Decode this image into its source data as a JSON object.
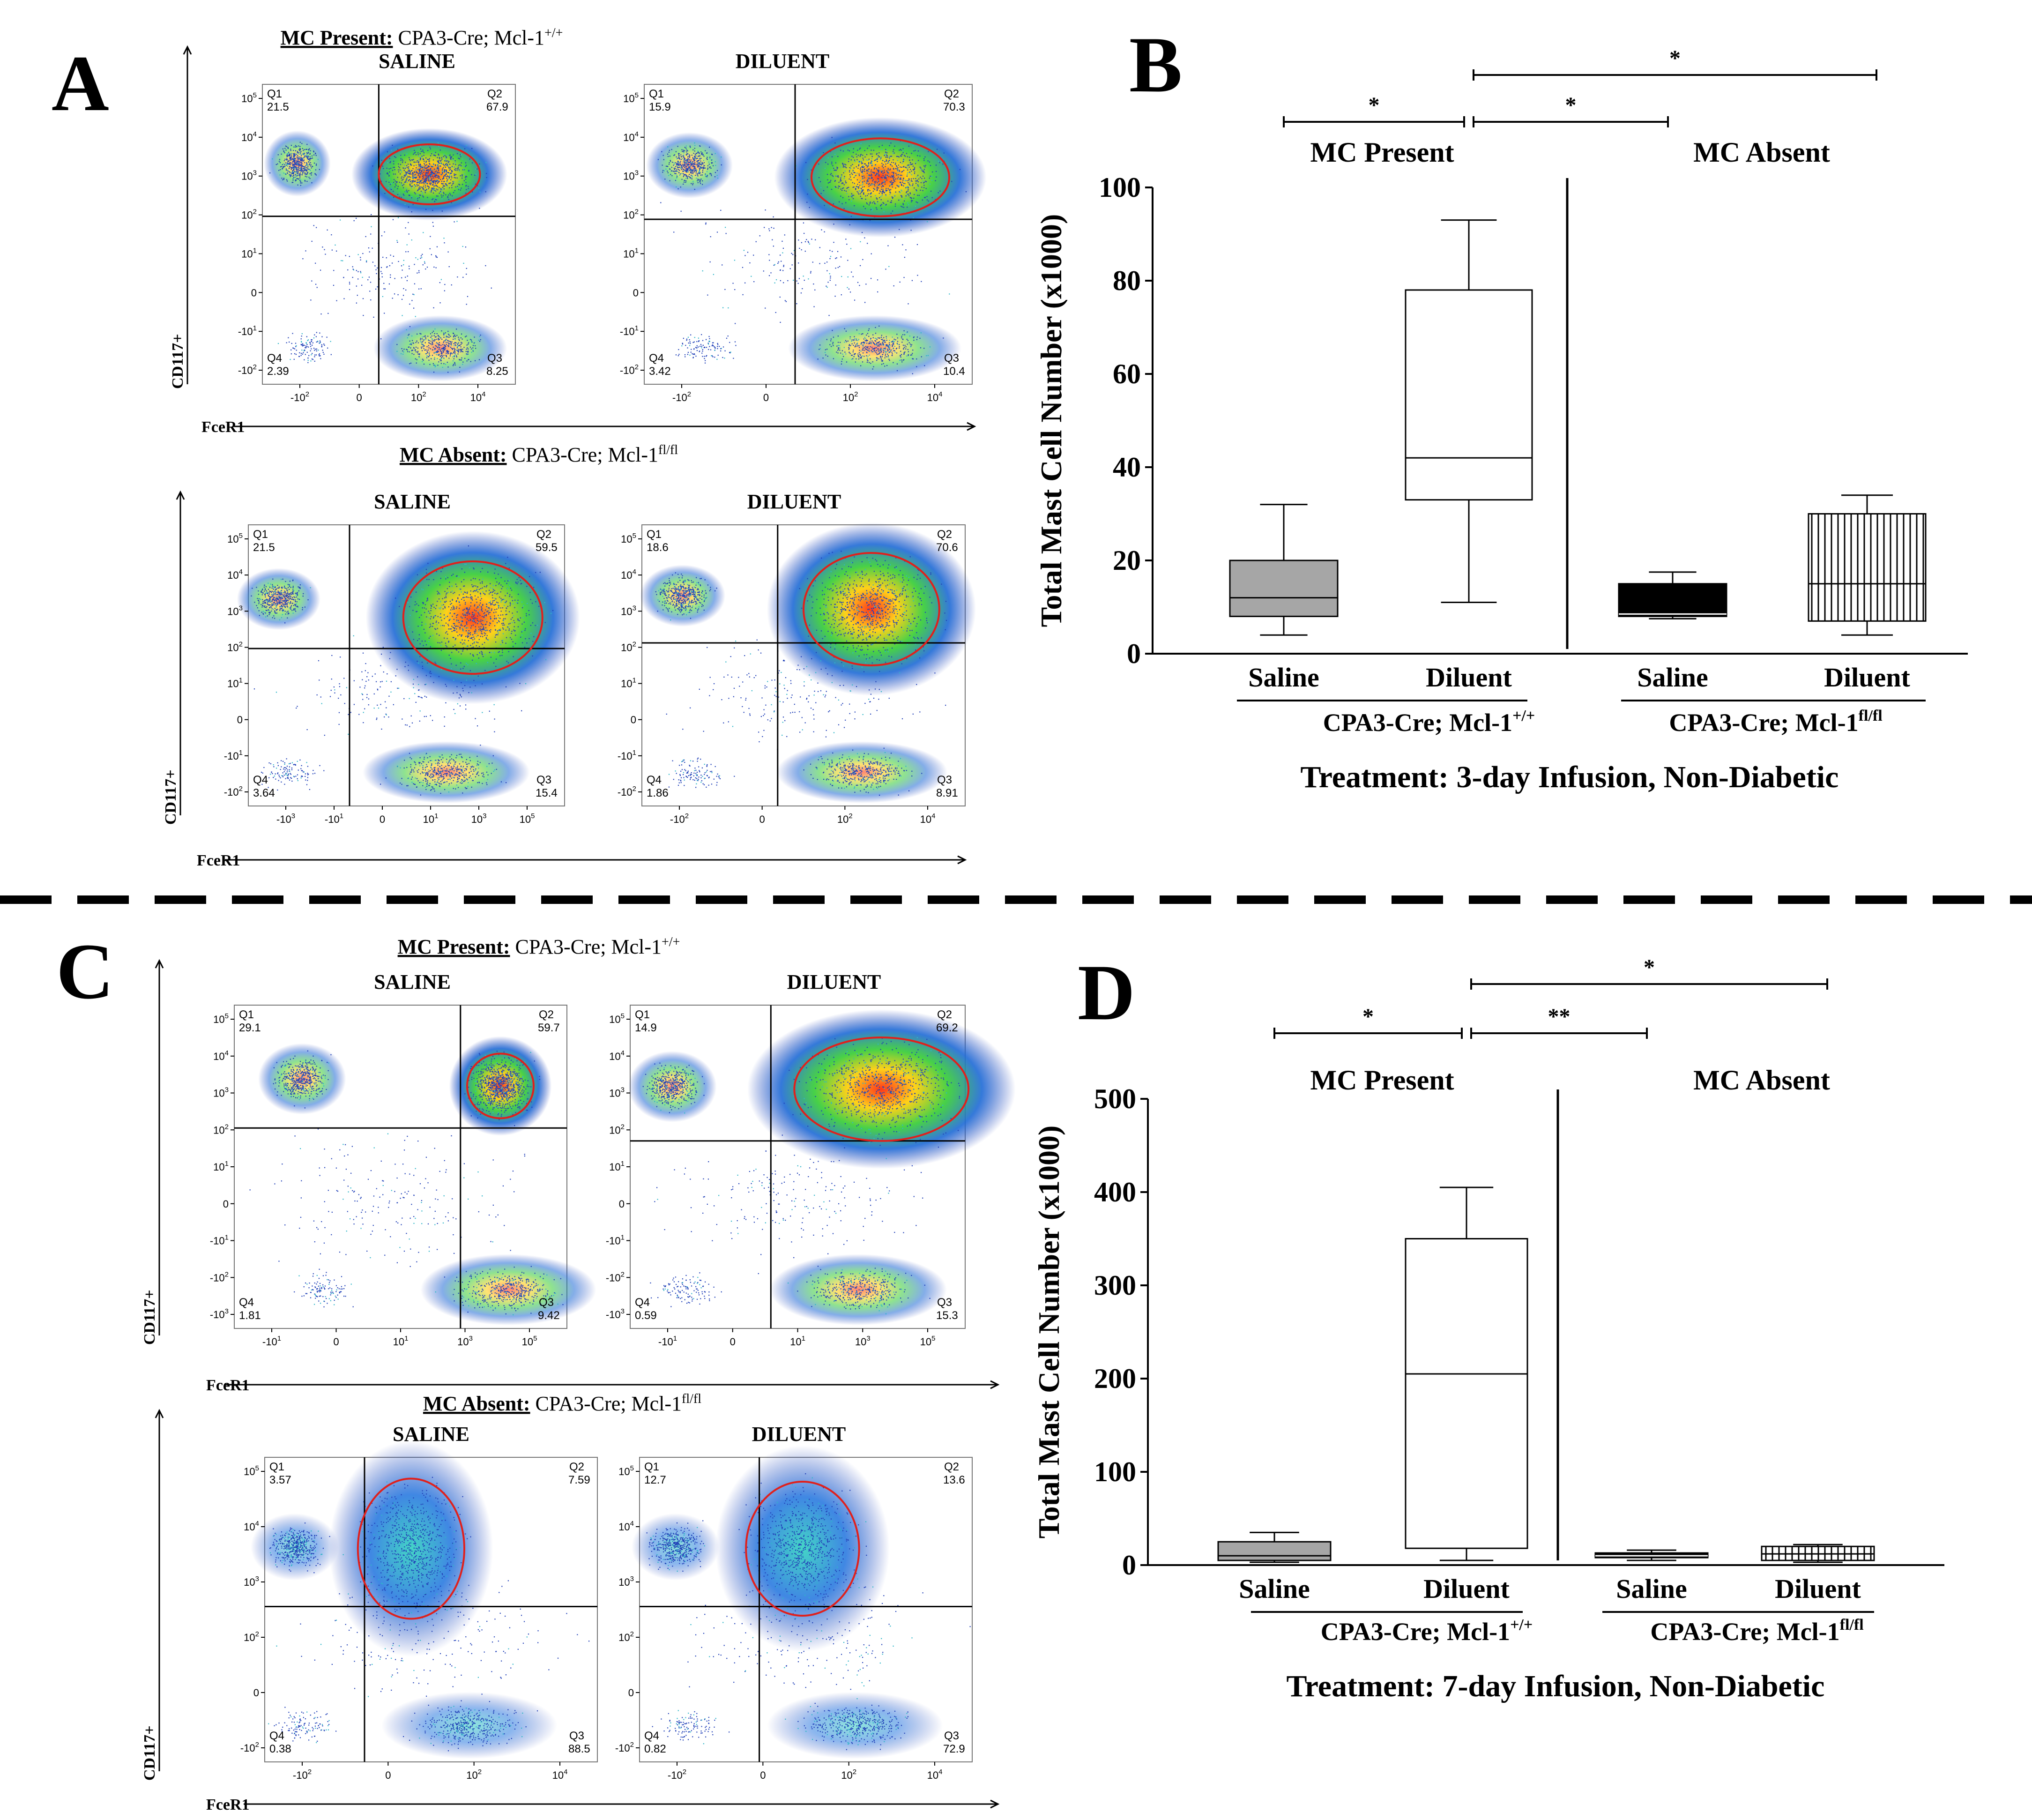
{
  "figure": {
    "panel_letters": {
      "a": "A",
      "b": "B",
      "c": "C",
      "d": "D"
    }
  },
  "flow": {
    "x_axis_label": "FceR1",
    "y_axis_label": "CD117+",
    "groups": {
      "A": {
        "present_bold": "MC Present:",
        "present_rest": " CPA3-Cre; Mcl-1",
        "present_sup": "+/+",
        "absent_bold": "MC Absent:",
        "absent_rest": " CPA3-Cre; Mcl-1",
        "absent_sup": "fl/fl"
      },
      "C": {
        "present_bold": "MC Present:",
        "present_rest": " CPA3-Cre; Mcl-1",
        "present_sup": "+/+",
        "absent_bold": "MC Absent:",
        "absent_rest": " CPA3-Cre; Mcl-1",
        "absent_sup": "fl/fl"
      }
    },
    "plots": [
      {
        "id": "A-present-saline",
        "title": "SALINE",
        "q1": "21.5",
        "q2": "67.9",
        "q3": "8.25",
        "q4": "2.39",
        "yticks": [
          "10^5",
          "10^4",
          "10^3",
          "10^2",
          "10^1",
          "0",
          "-10^1",
          "-10^2"
        ],
        "xticks": [
          "-10^2",
          "0",
          "10^2",
          "10^4"
        ]
      },
      {
        "id": "A-present-diluent",
        "title": "DILUENT",
        "q1": "15.9",
        "q2": "70.3",
        "q3": "10.4",
        "q4": "3.42",
        "yticks": [
          "10^5",
          "10^4",
          "10^3",
          "10^2",
          "10^1",
          "0",
          "-10^1",
          "-10^2"
        ],
        "xticks": [
          "-10^2",
          "0",
          "10^2",
          "10^4"
        ]
      },
      {
        "id": "A-absent-saline",
        "title": "SALINE",
        "q1": "21.5",
        "q2": "59.5",
        "q3": "15.4",
        "q4": "3.64",
        "yticks": [
          "10^5",
          "10^4",
          "10^3",
          "10^2",
          "10^1",
          "0",
          "-10^1",
          "-10^2"
        ],
        "xticks": [
          "-10^3",
          "-10^1",
          "0",
          "10^1",
          "10^3",
          "10^5"
        ]
      },
      {
        "id": "A-absent-diluent",
        "title": "DILUENT",
        "q1": "18.6",
        "q2": "70.6",
        "q3": "8.91",
        "q4": "1.86",
        "yticks": [
          "10^5",
          "10^4",
          "10^3",
          "10^2",
          "10^1",
          "0",
          "-10^1",
          "-10^2"
        ],
        "xticks": [
          "-10^2",
          "0",
          "10^2",
          "10^4"
        ]
      },
      {
        "id": "C-present-saline",
        "title": "SALINE",
        "q1": "29.1",
        "q2": "59.7",
        "q3": "9.42",
        "q4": "1.81",
        "yticks": [
          "10^5",
          "10^4",
          "10^3",
          "10^2",
          "10^1",
          "0",
          "-10^1",
          "-10^2",
          "-10^3"
        ],
        "xticks": [
          "-10^1",
          "0",
          "10^1",
          "10^3",
          "10^5"
        ]
      },
      {
        "id": "C-present-diluent",
        "title": "DILUENT",
        "q1": "14.9",
        "q2": "69.2",
        "q3": "15.3",
        "q4": "0.59",
        "yticks": [
          "10^5",
          "10^4",
          "10^3",
          "10^2",
          "10^1",
          "0",
          "-10^1",
          "-10^2",
          "-10^3"
        ],
        "xticks": [
          "-10^1",
          "0",
          "10^1",
          "10^3",
          "10^5"
        ]
      },
      {
        "id": "C-absent-saline",
        "title": "SALINE",
        "q1": "3.57",
        "q2": "7.59",
        "q3": "88.5",
        "q4": "0.38",
        "yticks": [
          "10^5",
          "10^4",
          "10^3",
          "10^2",
          "0",
          "-10^2"
        ],
        "xticks": [
          "-10^2",
          "0",
          "10^2",
          "10^4"
        ]
      },
      {
        "id": "C-absent-diluent",
        "title": "DILUENT",
        "q1": "12.7",
        "q2": "13.6",
        "q3": "72.9",
        "q4": "0.82",
        "yticks": [
          "10^5",
          "10^4",
          "10^3",
          "10^2",
          "0",
          "-10^2"
        ],
        "xticks": [
          "-10^2",
          "0",
          "10^2",
          "10^4"
        ]
      }
    ]
  },
  "chart_data": [
    {
      "panel": "B",
      "type": "box",
      "ylabel": "Total Mast Cell Number (x1000)",
      "xlabel": "Treatment: 3-day Infusion, Non-Diabetic",
      "ylim": [
        0,
        100
      ],
      "yticks": [
        "0",
        "20",
        "40",
        "60",
        "80",
        "100"
      ],
      "group_labels": [
        "MC Present",
        "MC Absent"
      ],
      "genotype_labels": [
        {
          "base": "CPA3-Cre; Mcl-1",
          "sup": "+/+"
        },
        {
          "base": "CPA3-Cre; Mcl-1",
          "sup": "fl/fl"
        }
      ],
      "categories": [
        "Saline",
        "Diluent",
        "Saline",
        "Diluent"
      ],
      "boxes": [
        {
          "min": 4,
          "q1": 8,
          "median": 12,
          "q3": 20,
          "max": 32,
          "fill": "gray"
        },
        {
          "min": 11,
          "q1": 33,
          "median": 42,
          "q3": 78,
          "max": 93,
          "fill": "white"
        },
        {
          "min": 7.5,
          "q1": 8,
          "median": 8.5,
          "q3": 15,
          "max": 17.5,
          "fill": "black"
        },
        {
          "min": 4,
          "q1": 7,
          "median": 15,
          "q3": 30,
          "max": 34,
          "fill": "striped"
        }
      ],
      "significance": [
        {
          "from": 0,
          "to": 1,
          "label": "*",
          "level": 1
        },
        {
          "from": 1,
          "to": 2,
          "label": "*",
          "level": 1
        },
        {
          "from": 1,
          "to": 3,
          "label": "*",
          "level": 2
        }
      ]
    },
    {
      "panel": "D",
      "type": "box",
      "ylabel": "Total Mast Cell Number (x1000)",
      "xlabel": "Treatment: 7-day Infusion, Non-Diabetic",
      "ylim": [
        0,
        500
      ],
      "yticks": [
        "0",
        "100",
        "200",
        "300",
        "400",
        "500"
      ],
      "group_labels": [
        "MC Present",
        "MC Absent"
      ],
      "genotype_labels": [
        {
          "base": "CPA3-Cre; Mcl-1",
          "sup": "+/+"
        },
        {
          "base": "CPA3-Cre; Mcl-1",
          "sup": "fl/fl"
        }
      ],
      "categories": [
        "Saline",
        "Diluent",
        "Saline",
        "Diluent"
      ],
      "boxes": [
        {
          "min": 3,
          "q1": 5,
          "median": 10,
          "q3": 25,
          "max": 35,
          "fill": "gray"
        },
        {
          "min": 5,
          "q1": 18,
          "median": 205,
          "q3": 350,
          "max": 405,
          "fill": "white"
        },
        {
          "min": 5,
          "q1": 8,
          "median": 10,
          "q3": 13,
          "max": 16,
          "fill": "black"
        },
        {
          "min": 3,
          "q1": 5,
          "median": 12,
          "q3": 20,
          "max": 22,
          "fill": "striped"
        }
      ],
      "significance": [
        {
          "from": 0,
          "to": 1,
          "label": "*",
          "level": 1
        },
        {
          "from": 1,
          "to": 2,
          "label": "**",
          "level": 1
        },
        {
          "from": 1,
          "to": 3,
          "label": "*",
          "level": 2
        }
      ]
    }
  ]
}
